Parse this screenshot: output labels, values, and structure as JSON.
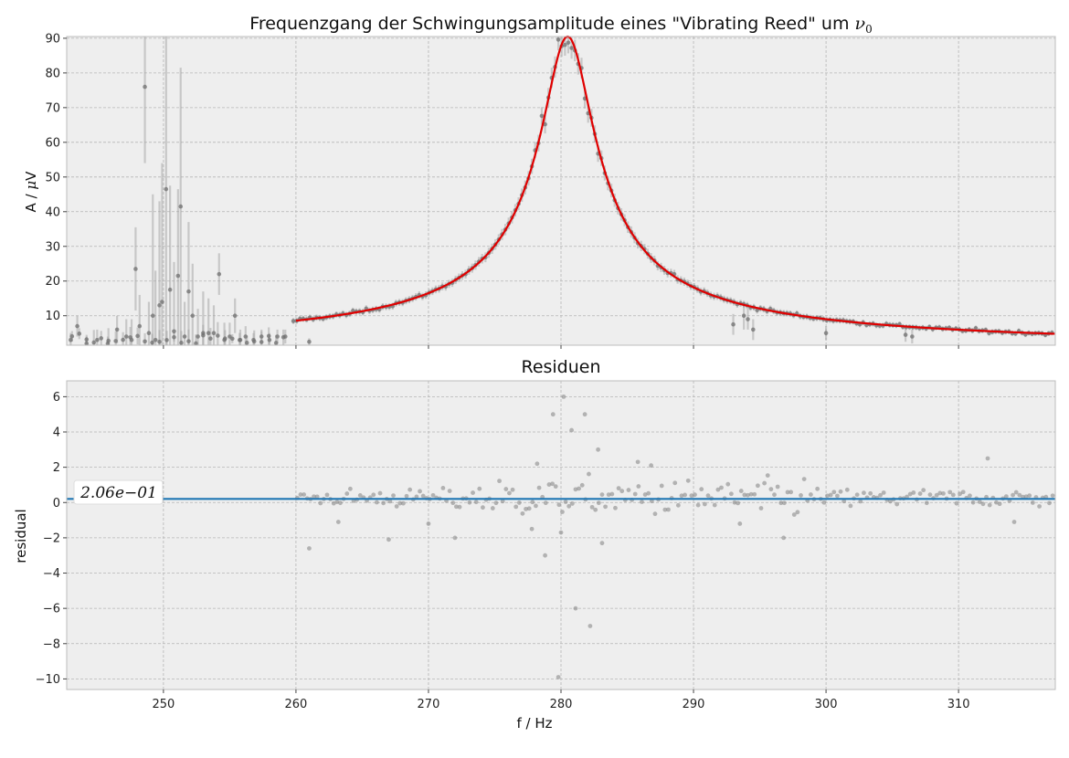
{
  "chart_data": [
    {
      "type": "scatter",
      "title": "Frequenzgang der Schwingungsamplitude eines \"Vibrating Reed\" um ",
      "title_math": "ν",
      "title_math_sub": "0",
      "xlabel": "",
      "ylabel": "A / ",
      "ylabel_math": "μ",
      "ylabel_unit": "V",
      "xlim": [
        242.7,
        317.3
      ],
      "ylim": [
        1.5,
        90.5
      ],
      "xticks": [
        250,
        260,
        270,
        280,
        290,
        300,
        310
      ],
      "yticks": [
        10,
        20,
        30,
        40,
        50,
        60,
        70,
        80,
        90
      ],
      "grid": true,
      "fit": {
        "f0": 280.5,
        "amplitude": 90.5,
        "gamma": 1.95,
        "color": "#e00000"
      },
      "noisy_points": [
        {
          "x": 243.0,
          "y": 3,
          "err": 2
        },
        {
          "x": 243.5,
          "y": 7,
          "err": 3
        },
        {
          "x": 244.2,
          "y": 2,
          "err": 2
        },
        {
          "x": 245.0,
          "y": 3,
          "err": 3
        },
        {
          "x": 245.8,
          "y": 2,
          "err": 2
        },
        {
          "x": 246.5,
          "y": 6,
          "err": 4
        },
        {
          "x": 247.2,
          "y": 4,
          "err": 5
        },
        {
          "x": 247.6,
          "y": 3,
          "err": 6
        },
        {
          "x": 247.9,
          "y": 23.5,
          "err": 12
        },
        {
          "x": 248.2,
          "y": 7,
          "err": 9
        },
        {
          "x": 248.6,
          "y": 76,
          "err": 22
        },
        {
          "x": 248.9,
          "y": 5,
          "err": 9
        },
        {
          "x": 249.2,
          "y": 10,
          "err": 35
        },
        {
          "x": 249.4,
          "y": 3,
          "err": 20
        },
        {
          "x": 249.7,
          "y": 13,
          "err": 30
        },
        {
          "x": 249.9,
          "y": 14,
          "err": 40
        },
        {
          "x": 250.2,
          "y": 46.5,
          "err": 45
        },
        {
          "x": 250.5,
          "y": 17.5,
          "err": 30
        },
        {
          "x": 250.8,
          "y": 5.5,
          "err": 20
        },
        {
          "x": 251.1,
          "y": 21.5,
          "err": 25
        },
        {
          "x": 251.3,
          "y": 41.5,
          "err": 40
        },
        {
          "x": 251.6,
          "y": 4,
          "err": 10
        },
        {
          "x": 251.9,
          "y": 17,
          "err": 20
        },
        {
          "x": 252.2,
          "y": 10,
          "err": 15
        },
        {
          "x": 252.6,
          "y": 4,
          "err": 8
        },
        {
          "x": 253.0,
          "y": 5,
          "err": 12
        },
        {
          "x": 253.4,
          "y": 5,
          "err": 10
        },
        {
          "x": 253.8,
          "y": 5,
          "err": 8
        },
        {
          "x": 254.2,
          "y": 22,
          "err": 6
        },
        {
          "x": 254.6,
          "y": 3,
          "err": 5
        },
        {
          "x": 255.0,
          "y": 4,
          "err": 4
        },
        {
          "x": 255.4,
          "y": 10,
          "err": 5
        },
        {
          "x": 255.8,
          "y": 3,
          "err": 3
        },
        {
          "x": 256.2,
          "y": 4,
          "err": 3
        },
        {
          "x": 256.8,
          "y": 3,
          "err": 2
        },
        {
          "x": 257.4,
          "y": 4,
          "err": 2
        },
        {
          "x": 258.0,
          "y": 3,
          "err": 2
        },
        {
          "x": 258.6,
          "y": 4,
          "err": 2
        },
        {
          "x": 259.2,
          "y": 4,
          "err": 2
        },
        {
          "x": 261.0,
          "y": 2.5,
          "err": 1
        },
        {
          "x": 293.0,
          "y": 7.5,
          "err": 3
        },
        {
          "x": 293.8,
          "y": 10,
          "err": 4
        },
        {
          "x": 294.1,
          "y": 9,
          "err": 3
        },
        {
          "x": 294.5,
          "y": 6,
          "err": 3
        },
        {
          "x": 300.0,
          "y": 5,
          "err": 2
        },
        {
          "x": 306.0,
          "y": 4.5,
          "err": 2
        },
        {
          "x": 306.5,
          "y": 4,
          "err": 2
        }
      ]
    },
    {
      "type": "scatter",
      "title": "Residuen",
      "xlabel": "f / Hz",
      "ylabel": "residual",
      "xlim": [
        242.7,
        317.3
      ],
      "ylim": [
        -10.6,
        6.9
      ],
      "xticks": [
        250,
        260,
        270,
        280,
        290,
        300,
        310
      ],
      "yticks": [
        -10,
        -8,
        -6,
        -4,
        -2,
        0,
        2,
        4,
        6
      ],
      "grid": true,
      "mean_line": {
        "value": 0.206,
        "label": "2.06e−01",
        "color": "#1f77b4"
      },
      "outliers": [
        {
          "x": 261.0,
          "y": -2.6
        },
        {
          "x": 263.2,
          "y": -1.1
        },
        {
          "x": 267.0,
          "y": -2.1
        },
        {
          "x": 270.0,
          "y": -1.2
        },
        {
          "x": 272.0,
          "y": -2.0
        },
        {
          "x": 277.8,
          "y": -1.5
        },
        {
          "x": 278.8,
          "y": -3.0
        },
        {
          "x": 279.4,
          "y": 5.0
        },
        {
          "x": 279.8,
          "y": -9.9
        },
        {
          "x": 280.0,
          "y": -1.7
        },
        {
          "x": 280.2,
          "y": 6.0
        },
        {
          "x": 280.8,
          "y": 4.1
        },
        {
          "x": 281.1,
          "y": -6.0
        },
        {
          "x": 281.8,
          "y": 5.0
        },
        {
          "x": 282.2,
          "y": -7.0
        },
        {
          "x": 282.8,
          "y": 3.0
        },
        {
          "x": 283.1,
          "y": -2.3
        },
        {
          "x": 293.5,
          "y": -1.2
        },
        {
          "x": 296.8,
          "y": -2.0
        },
        {
          "x": 312.2,
          "y": 2.5
        },
        {
          "x": 314.2,
          "y": -1.1
        },
        {
          "x": 278.2,
          "y": 2.2
        },
        {
          "x": 285.8,
          "y": 2.3
        },
        {
          "x": 286.8,
          "y": 2.1
        }
      ]
    }
  ]
}
